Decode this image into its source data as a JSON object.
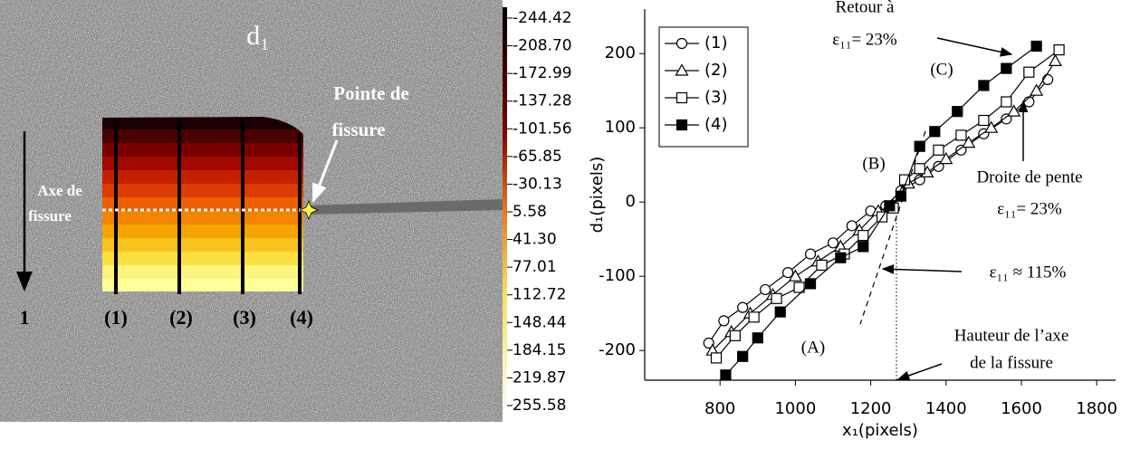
{
  "chart_data": [
    {
      "type": "heatmap",
      "title": "d₁",
      "annotations": [
        "Pointe de",
        "fissure",
        "Axe de",
        "fissure",
        "1",
        "(1)",
        "(2)",
        "(3)",
        "(4)"
      ],
      "clim": [
        -244.42,
        255.58
      ],
      "cticks": [
        -244.42,
        {
          "value": -208.7,
          "label": "-208.70"
        },
        -172.99,
        -137.28,
        -101.56,
        -65.85,
        -30.13,
        5.58,
        {
          "value": 41.3,
          "label": "41.30"
        },
        77.01,
        112.72,
        148.44,
        184.15,
        219.87,
        255.58
      ]
    },
    {
      "type": "line",
      "xlabel": "x₁(pixels)",
      "ylabel": "d₁(pixels)",
      "xlim": [
        600,
        1850
      ],
      "ylim": [
        -240,
        260
      ],
      "xticks": [
        800,
        1000,
        1200,
        1400,
        1600,
        1800
      ],
      "yticks": [
        -200,
        -100,
        0,
        100,
        200
      ],
      "legend": "upper left",
      "annotations": [
        "Retour à",
        "ε₁₁= 23%",
        "(C)",
        "(B)",
        "(A)",
        "Droite de pente",
        "ε₁₁= 23%",
        "ε₁₁ ≈ 115%",
        "Hauteur de l’axe",
        "de la fissure"
      ],
      "series": [
        {
          "name": "(1)",
          "color": "#000000",
          "marker": "circle",
          "marker_fill": "#ffffff",
          "x": [
            770,
            810,
            860,
            920,
            980,
            1040,
            1100,
            1150,
            1200,
            1240,
            1280,
            1330,
            1380,
            1440,
            1500,
            1560,
            1620,
            1670
          ],
          "values": [
            -190,
            -160,
            -142,
            -118,
            -95,
            -70,
            -55,
            -32,
            -12,
            -5,
            15,
            30,
            48,
            70,
            92,
            112,
            135,
            165
          ]
        },
        {
          "name": "(2)",
          "color": "#000000",
          "marker": "triangle",
          "marker_fill": "#ffffff",
          "x": [
            780,
            830,
            880,
            940,
            1000,
            1060,
            1120,
            1170,
            1220,
            1260,
            1300,
            1350,
            1400,
            1460,
            1520,
            1580,
            1640,
            1690
          ],
          "values": [
            -200,
            -175,
            -150,
            -125,
            -100,
            -80,
            -60,
            -38,
            -12,
            -5,
            25,
            40,
            58,
            80,
            100,
            122,
            150,
            190
          ]
        },
        {
          "name": "(3)",
          "color": "#000000",
          "marker": "square",
          "marker_fill": "#ffffff",
          "x": [
            790,
            840,
            890,
            950,
            1010,
            1070,
            1130,
            1180,
            1230,
            1260,
            1290,
            1330,
            1380,
            1440,
            1500,
            1560,
            1620,
            1700
          ],
          "values": [
            -210,
            -180,
            -155,
            -130,
            -115,
            -85,
            -70,
            -45,
            -20,
            -8,
            30,
            45,
            70,
            90,
            110,
            135,
            175,
            205
          ]
        },
        {
          "name": "(4)",
          "color": "#000000",
          "marker": "square",
          "marker_fill": "#000000",
          "x": [
            815,
            860,
            900,
            960,
            1040,
            1120,
            1180,
            1250,
            1280,
            1330,
            1370,
            1430,
            1500,
            1560,
            1640
          ],
          "values": [
            -233,
            -208,
            -183,
            -148,
            -110,
            -75,
            -60,
            -5,
            8,
            75,
            95,
            122,
            157,
            180,
            210
          ]
        }
      ]
    }
  ]
}
